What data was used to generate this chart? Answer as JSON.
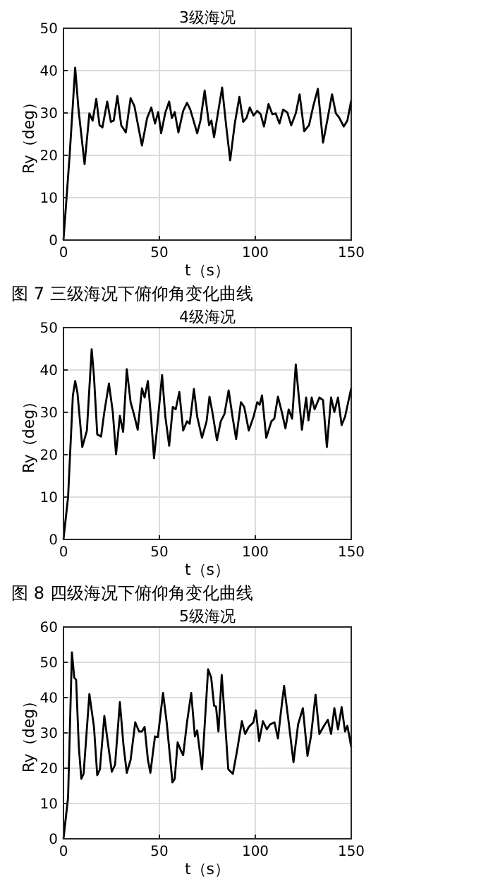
{
  "chart_data": [
    {
      "type": "line",
      "title": "3级海况",
      "xlabel": "t（s）",
      "ylabel": "Ry（deg）",
      "annotations": [
        "图 7 三级海况下俯仰角变化曲线"
      ],
      "xlim": [
        0,
        150
      ],
      "ylim": [
        0,
        50
      ],
      "xticks": [
        0,
        50,
        100,
        150
      ],
      "yticks": [
        0,
        10,
        20,
        30,
        40,
        50
      ],
      "grid": true,
      "line_style": "solid",
      "marker": "none",
      "x": [
        0,
        3.2,
        6.1,
        7.8,
        11,
        13.5,
        15.2,
        17.1,
        18.8,
        20.3,
        22.8,
        24.7,
        26.2,
        28.1,
        30.1,
        32.5,
        35,
        37,
        38.7,
        40.9,
        43.6,
        45.8,
        47.7,
        49.4,
        50.9,
        53.1,
        55.1,
        56.5,
        58,
        59.9,
        62.4,
        64.4,
        66.1,
        67.8,
        69.7,
        71.4,
        73.6,
        75.9,
        77.1,
        78.5,
        80.5,
        82.7,
        84.9,
        86.9,
        89.3,
        91.7,
        93.7,
        95.4,
        97.1,
        99.1,
        101,
        102.8,
        104.5,
        106.9,
        108.9,
        110.6,
        112.6,
        114.5,
        116.7,
        118.7,
        121.1,
        123.1,
        125.5,
        128,
        130.2,
        132.6,
        135.3,
        137.5,
        140,
        142,
        143.6,
        146.1,
        148,
        150
      ],
      "series": [
        {
          "color": "#000000",
          "values": [
            0,
            19.9,
            40.7,
            31,
            17.9,
            29.9,
            28.2,
            33.3,
            27.1,
            26.6,
            32.7,
            27.9,
            28.2,
            34,
            27.1,
            25.4,
            33.5,
            31.6,
            27.5,
            22.3,
            28.8,
            31.3,
            27.5,
            30.2,
            25.2,
            30.1,
            32.7,
            28.8,
            30.2,
            25.4,
            30.5,
            32.4,
            30.8,
            28.2,
            25.2,
            28.2,
            35.3,
            27.1,
            28.2,
            24.3,
            29.9,
            36,
            26.6,
            18.8,
            27.5,
            33.8,
            27.9,
            28.8,
            31.3,
            29.4,
            30.5,
            29.7,
            26.8,
            32.1,
            29.7,
            29.9,
            27.5,
            30.8,
            30.1,
            27.1,
            29.9,
            34.4,
            25.7,
            27.1,
            31.6,
            35.7,
            23,
            28.2,
            34.4,
            29.9,
            29,
            26.8,
            28.2,
            33
          ]
        }
      ]
    },
    {
      "type": "line",
      "title": "4级海况",
      "xlabel": "t（s）",
      "ylabel": "Ry（deg）",
      "annotations": [
        "图 8 四级海况下俯仰角变化曲线"
      ],
      "xlim": [
        0,
        150
      ],
      "ylim": [
        0,
        50
      ],
      "xticks": [
        0,
        50,
        100,
        150
      ],
      "yticks": [
        0,
        10,
        20,
        30,
        40,
        50
      ],
      "grid": true,
      "line_style": "solid",
      "marker": "none",
      "x": [
        0,
        2.4,
        4.9,
        6.1,
        7.3,
        9.8,
        12.2,
        14.7,
        15.9,
        17.6,
        19.6,
        21.3,
        23.7,
        25.7,
        27.4,
        29.4,
        31.1,
        33,
        35,
        36.7,
        38.7,
        40.9,
        42.3,
        44,
        45.8,
        47.2,
        48.9,
        51.4,
        53.1,
        55.1,
        57,
        58.5,
        60.4,
        62.4,
        64.4,
        65.8,
        68,
        69.7,
        72.2,
        74.6,
        76.1,
        77.6,
        80,
        82,
        83.9,
        86.1,
        88.1,
        90,
        92.5,
        94.2,
        96.6,
        99.1,
        101,
        102.3,
        103.5,
        105.7,
        108.4,
        109.9,
        111.8,
        113.8,
        115.7,
        117.4,
        119.2,
        121.1,
        124.3,
        126.5,
        127.7,
        129.4,
        130.9,
        133.4,
        135.3,
        137.3,
        139.5,
        141.2,
        143.1,
        145,
        146.8,
        150
      ],
      "series": [
        {
          "color": "#000000",
          "values": [
            0,
            10,
            34,
            37.4,
            34.6,
            21.8,
            25.7,
            44.9,
            38.5,
            24.8,
            24.3,
            30.1,
            36.8,
            30.1,
            20.1,
            29.2,
            25.4,
            40.2,
            32.4,
            29.6,
            25.9,
            35.7,
            33.5,
            37.4,
            27.9,
            19.2,
            26.8,
            38.8,
            29,
            22.1,
            31.3,
            30.7,
            34.8,
            25.7,
            27.9,
            27.3,
            35.5,
            29,
            24,
            27.9,
            33.7,
            30.1,
            23.4,
            27.9,
            29.6,
            35.2,
            29,
            23.7,
            32.4,
            31.3,
            25.7,
            29,
            32.4,
            31.8,
            34,
            24,
            27.9,
            28.5,
            33.7,
            30.1,
            26.2,
            30.7,
            28.5,
            41.3,
            25.9,
            33.5,
            28.1,
            33.5,
            30.7,
            33.5,
            32.9,
            21.8,
            33.5,
            30.1,
            33.5,
            27,
            29,
            35.7
          ]
        }
      ]
    },
    {
      "type": "line",
      "title": "5级海况",
      "xlabel": "t（s）",
      "ylabel": "Ry（deg）",
      "xlim": [
        0,
        150
      ],
      "ylim": [
        0,
        60
      ],
      "xticks": [
        0,
        50,
        100,
        150
      ],
      "yticks": [
        0,
        10,
        20,
        30,
        40,
        50,
        60
      ],
      "grid": true,
      "line_style": "solid",
      "marker": "none",
      "x": [
        0,
        2.4,
        4.4,
        5.6,
        6.6,
        8,
        9.3,
        10.5,
        13.5,
        15.9,
        17.6,
        19,
        21.3,
        22.7,
        25.2,
        26.9,
        29.4,
        31.3,
        33,
        35,
        37.4,
        39.4,
        40.9,
        42.3,
        44,
        45.3,
        47.7,
        49.2,
        51.9,
        53.8,
        56.8,
        58,
        59.5,
        61.2,
        62.4,
        64.4,
        66.6,
        68.5,
        69.7,
        72.2,
        75.4,
        77,
        78.5,
        79.5,
        80.8,
        82.5,
        84.4,
        85.9,
        88.3,
        90.5,
        93,
        94.7,
        96.6,
        99,
        100.3,
        102,
        104,
        106,
        107.7,
        110,
        111.8,
        113.3,
        115,
        117.4,
        119.9,
        122.3,
        124.8,
        127.2,
        129,
        131.4,
        133.4,
        135.8,
        137.8,
        139.5,
        141.2,
        143.1,
        145,
        146.8,
        148,
        150
      ],
      "series": [
        {
          "color": "#000000",
          "values": [
            0,
            11.7,
            52.8,
            45.7,
            45,
            26,
            17,
            18.4,
            41,
            31.7,
            18,
            19.7,
            34.8,
            29,
            19,
            21,
            38.7,
            26.4,
            18.7,
            22.4,
            33,
            30.4,
            30.4,
            31.7,
            22.4,
            18.7,
            29,
            28.8,
            41.3,
            33,
            16,
            17,
            27.3,
            25,
            23.7,
            33,
            41.3,
            29,
            30.7,
            19.7,
            48,
            45.7,
            37.7,
            37.5,
            30.4,
            46.4,
            31.7,
            19.7,
            18.4,
            25,
            33.3,
            29.7,
            31.7,
            33,
            36.4,
            27.7,
            33.3,
            31,
            32.4,
            33,
            28.4,
            35.7,
            43.3,
            33,
            21.7,
            32.4,
            37,
            23.5,
            29,
            40.8,
            29.7,
            32,
            33.7,
            29.7,
            37,
            31,
            37.3,
            30.4,
            32,
            26
          ]
        }
      ]
    }
  ]
}
